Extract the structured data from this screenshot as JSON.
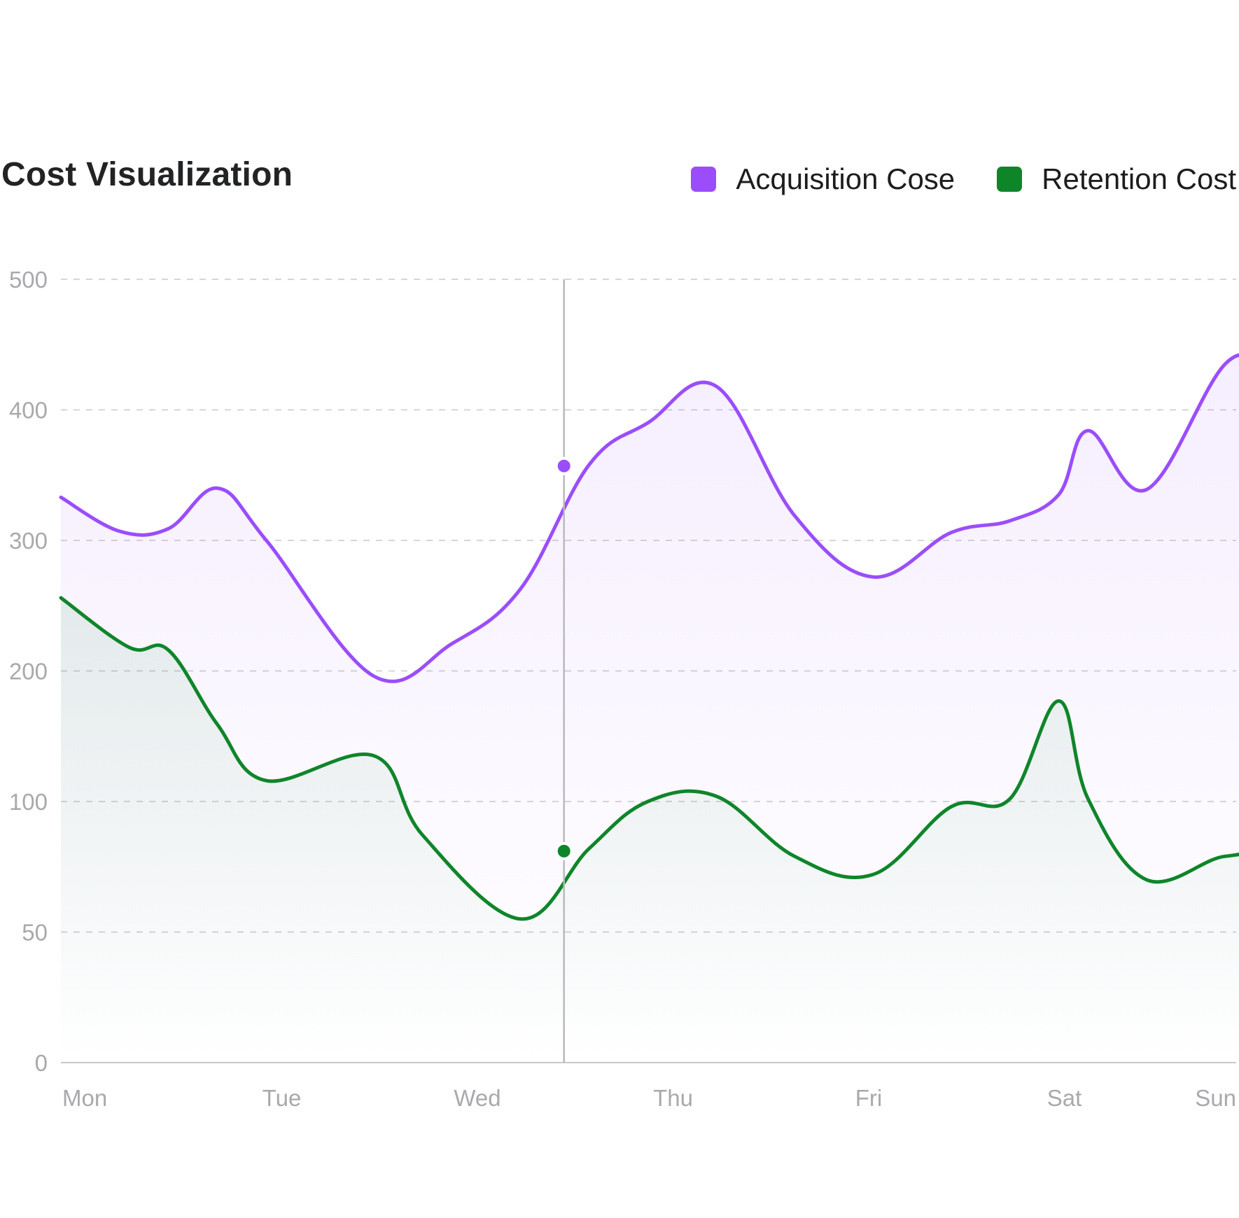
{
  "chart_data": {
    "type": "line",
    "title": "Cost Visualization",
    "categories": [
      "Mon",
      "Tue",
      "Wed",
      "Thu",
      "Fri",
      "Sat",
      "Sun"
    ],
    "y_ticks": [
      0,
      50,
      100,
      200,
      300,
      400,
      500
    ],
    "y_scale": "piecewise (ticks evenly spaced)",
    "grid": "horizontal dashed",
    "legend_position": "top-right",
    "series": [
      {
        "name": "Acquisition Cose",
        "color": "#9b4dfc",
        "x": [
          0.0,
          0.3,
          0.55,
          0.8,
          1.05,
          1.6,
          2.0,
          2.35,
          2.7,
          3.0,
          3.35,
          3.75,
          4.15,
          4.55,
          4.85,
          5.1,
          5.25,
          5.55,
          5.95,
          6.2,
          6.45
        ],
        "values": [
          333,
          307,
          309,
          340,
          300,
          196,
          221,
          263,
          358,
          390,
          418,
          319,
          272,
          306,
          315,
          335,
          384,
          339,
          435,
          439,
          479
        ]
      },
      {
        "name": "Retention Cost",
        "color": "#0f852a",
        "x": [
          0.0,
          0.35,
          0.55,
          0.8,
          1.05,
          1.6,
          1.85,
          2.35,
          2.7,
          3.0,
          3.35,
          3.75,
          4.15,
          4.55,
          4.85,
          5.1,
          5.25,
          5.55,
          5.95,
          6.2,
          6.45
        ],
        "values": [
          256,
          218,
          216,
          159,
          116,
          135,
          87,
          55,
          82,
          100,
          104,
          79,
          72,
          98,
          102,
          177,
          102,
          70,
          79,
          75,
          38
        ]
      }
    ],
    "highlight": {
      "x": 2.6,
      "points": [
        {
          "series": "Acquisition Cose",
          "value": 357
        },
        {
          "series": "Retention Cost",
          "value": 81
        }
      ]
    }
  }
}
